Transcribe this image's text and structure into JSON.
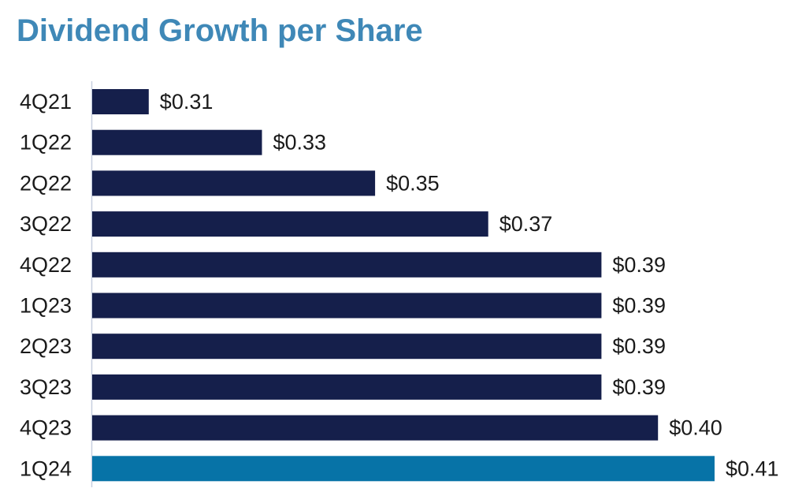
{
  "title": "Dividend Growth per Share",
  "colors": {
    "title": "#3f88b7",
    "bar_default": "#151f4b",
    "bar_highlight": "#0773a7",
    "axis": "#c8d0e0",
    "text": "#1a1a1a"
  },
  "chart_data": {
    "type": "bar",
    "orientation": "horizontal",
    "categories": [
      "4Q21",
      "1Q22",
      "2Q22",
      "3Q22",
      "4Q22",
      "1Q23",
      "2Q23",
      "3Q23",
      "4Q23",
      "1Q24"
    ],
    "values": [
      0.31,
      0.33,
      0.35,
      0.37,
      0.39,
      0.39,
      0.39,
      0.39,
      0.4,
      0.41
    ],
    "value_labels": [
      "$0.31",
      "$0.33",
      "$0.35",
      "$0.37",
      "$0.39",
      "$0.39",
      "$0.39",
      "$0.39",
      "$0.40",
      "$0.41"
    ],
    "highlighted_category": "1Q24",
    "title": "Dividend Growth per Share",
    "xlabel": "",
    "ylabel": "",
    "xlim": [
      0.3,
      0.42
    ],
    "grid": false,
    "legend": "none"
  }
}
